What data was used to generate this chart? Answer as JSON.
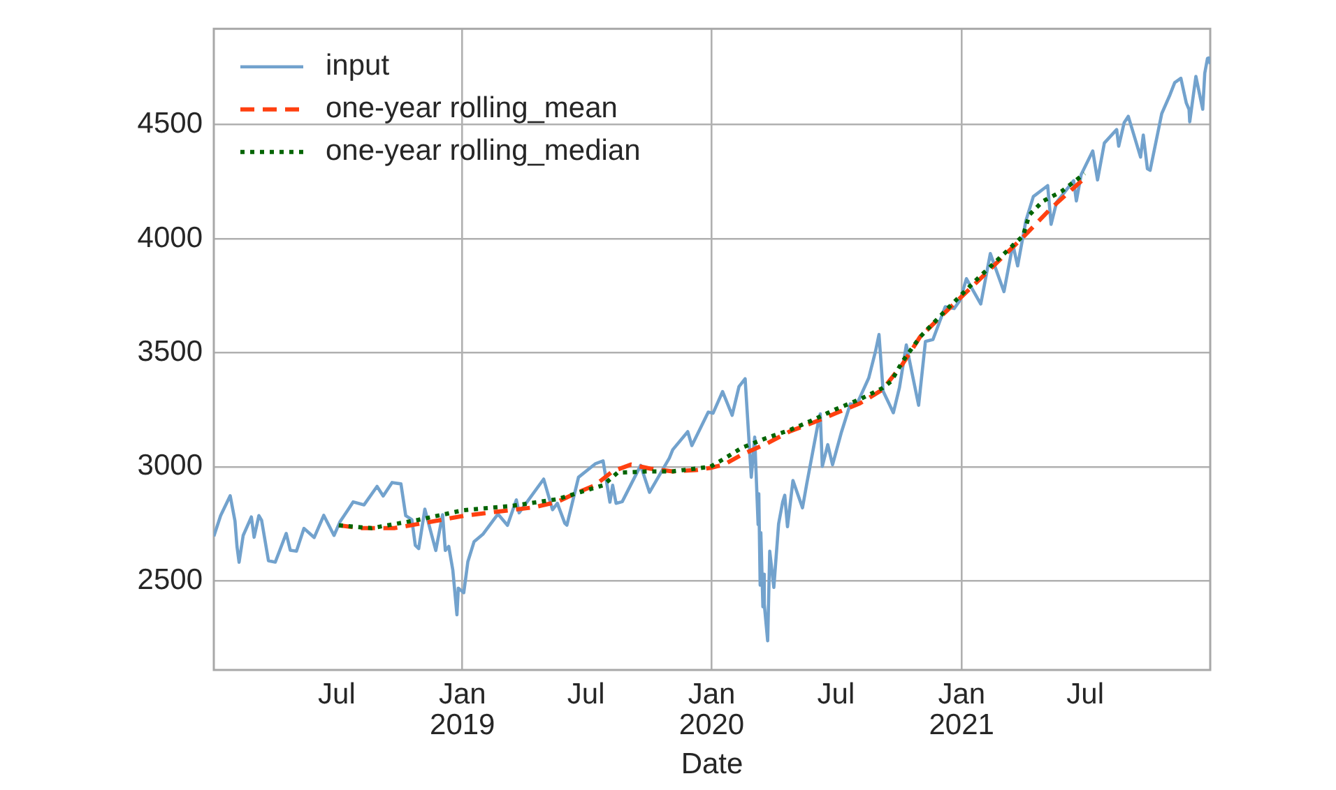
{
  "chart_data": {
    "type": "line",
    "xlabel": "Date",
    "xlim": [
      "2018-01-02",
      "2021-12-31"
    ],
    "ylim": [
      2109,
      4921
    ],
    "xticks": [
      {
        "value": "2018-07-01",
        "label": "Jul"
      },
      {
        "value": "2019-01-01",
        "label": "Jan\n2019"
      },
      {
        "value": "2019-07-01",
        "label": "Jul"
      },
      {
        "value": "2020-01-01",
        "label": "Jan\n2020"
      },
      {
        "value": "2020-07-01",
        "label": "Jul"
      },
      {
        "value": "2021-01-01",
        "label": "Jan\n2021"
      },
      {
        "value": "2021-07-01",
        "label": "Jul"
      }
    ],
    "yticks": [
      2500,
      3000,
      3500,
      4000,
      4500
    ],
    "grid": true,
    "legend": "top left",
    "series": [
      {
        "name": "input",
        "color": "#72a2cd",
        "line_style": "solid",
        "x": [
          "2018-01-02",
          "2018-01-12",
          "2018-01-26",
          "2018-02-02",
          "2018-02-05",
          "2018-02-08",
          "2018-02-14",
          "2018-02-26",
          "2018-03-02",
          "2018-03-09",
          "2018-03-13",
          "2018-03-23",
          "2018-04-02",
          "2018-04-18",
          "2018-04-24",
          "2018-05-03",
          "2018-05-14",
          "2018-05-29",
          "2018-06-12",
          "2018-06-27",
          "2018-07-06",
          "2018-07-17",
          "2018-07-25",
          "2018-08-10",
          "2018-08-29",
          "2018-09-07",
          "2018-09-20",
          "2018-10-03",
          "2018-10-10",
          "2018-10-19",
          "2018-10-24",
          "2018-10-29",
          "2018-11-07",
          "2018-11-23",
          "2018-12-03",
          "2018-12-07",
          "2018-12-12",
          "2018-12-18",
          "2018-12-24",
          "2018-12-26",
          "2019-01-03",
          "2019-01-09",
          "2019-01-18",
          "2019-01-31",
          "2019-02-22",
          "2019-03-08",
          "2019-03-21",
          "2019-03-25",
          "2019-04-30",
          "2019-05-13",
          "2019-05-20",
          "2019-05-31",
          "2019-06-03",
          "2019-06-20",
          "2019-07-15",
          "2019-07-26",
          "2019-08-05",
          "2019-08-09",
          "2019-08-14",
          "2019-08-23",
          "2019-09-19",
          "2019-10-02",
          "2019-10-31",
          "2019-11-05",
          "2019-11-27",
          "2019-12-03",
          "2019-12-27",
          "2020-01-03",
          "2020-01-17",
          "2020-01-31",
          "2020-02-10",
          "2020-02-19",
          "2020-02-28",
          "2020-03-04",
          "2020-03-09",
          "2020-03-10",
          "2020-03-12",
          "2020-03-13",
          "2020-03-16",
          "2020-03-17",
          "2020-03-18",
          "2020-03-23",
          "2020-03-26",
          "2020-04-01",
          "2020-04-08",
          "2020-04-14",
          "2020-04-17",
          "2020-04-21",
          "2020-04-29",
          "2020-05-13",
          "2020-05-19",
          "2020-06-05",
          "2020-06-08",
          "2020-06-11",
          "2020-06-19",
          "2020-06-26",
          "2020-07-09",
          "2020-07-22",
          "2020-07-31",
          "2020-08-18",
          "2020-08-28",
          "2020-09-02",
          "2020-09-08",
          "2020-09-23",
          "2020-10-02",
          "2020-10-12",
          "2020-10-30",
          "2020-11-09",
          "2020-11-20",
          "2020-12-08",
          "2020-12-21",
          "2020-12-30",
          "2021-01-08",
          "2021-01-29",
          "2021-02-12",
          "2021-03-04",
          "2021-03-17",
          "2021-03-24",
          "2021-04-05",
          "2021-04-16",
          "2021-05-07",
          "2021-05-12",
          "2021-05-20",
          "2021-06-14",
          "2021-06-18",
          "2021-06-25",
          "2021-07-12",
          "2021-07-19",
          "2021-07-29",
          "2021-08-16",
          "2021-08-19",
          "2021-08-27",
          "2021-09-02",
          "2021-09-20",
          "2021-09-24",
          "2021-09-30",
          "2021-10-04",
          "2021-10-21",
          "2021-11-02",
          "2021-11-09",
          "2021-11-18",
          "2021-11-26",
          "2021-11-30",
          "2021-12-01",
          "2021-12-10",
          "2021-12-20",
          "2021-12-23",
          "2021-12-27",
          "2021-12-29",
          "2021-12-31"
        ],
        "values": [
          2695,
          2786,
          2873,
          2762,
          2649,
          2581,
          2699,
          2780,
          2691,
          2786,
          2765,
          2588,
          2582,
          2708,
          2634,
          2630,
          2730,
          2690,
          2787,
          2699,
          2760,
          2809,
          2846,
          2833,
          2914,
          2872,
          2931,
          2925,
          2786,
          2768,
          2656,
          2641,
          2814,
          2633,
          2790,
          2633,
          2651,
          2546,
          2351,
          2468,
          2448,
          2584,
          2671,
          2704,
          2793,
          2743,
          2855,
          2798,
          2946,
          2812,
          2840,
          2752,
          2744,
          2954,
          3014,
          3026,
          2845,
          2919,
          2840,
          2847,
          3006,
          2888,
          3038,
          3075,
          3154,
          3093,
          3240,
          3235,
          3330,
          3226,
          3352,
          3386,
          2954,
          3130,
          2747,
          2882,
          2481,
          2711,
          2386,
          2529,
          2398,
          2237,
          2630,
          2471,
          2750,
          2846,
          2875,
          2737,
          2940,
          2820,
          2922,
          3194,
          3232,
          3002,
          3097,
          3009,
          3152,
          3276,
          3271,
          3390,
          3508,
          3580,
          3332,
          3237,
          3348,
          3534,
          3270,
          3550,
          3558,
          3702,
          3694,
          3732,
          3825,
          3714,
          3935,
          3768,
          3975,
          3881,
          4078,
          4185,
          4233,
          4063,
          4160,
          4255,
          4166,
          4281,
          4385,
          4258,
          4420,
          4479,
          4406,
          4509,
          4537,
          4358,
          4455,
          4307,
          4300,
          4549,
          4631,
          4685,
          4704,
          4595,
          4567,
          4513,
          4712,
          4568,
          4726,
          4791,
          4793,
          4766
        ]
      },
      {
        "name": "one-year rolling_mean",
        "color": "#ff4010",
        "line_style": "dashed",
        "x": [
          "2018-07-04",
          "2018-08-07",
          "2018-09-23",
          "2018-10-28",
          "2018-12-01",
          "2019-01-03",
          "2019-02-07",
          "2019-03-13",
          "2019-04-15",
          "2019-05-20",
          "2019-06-15",
          "2019-07-14",
          "2019-08-09",
          "2019-09-05",
          "2019-10-03",
          "2019-11-05",
          "2019-12-10",
          "2019-12-30",
          "2020-01-19",
          "2020-02-14",
          "2020-03-21",
          "2020-04-25",
          "2020-05-28",
          "2020-07-01",
          "2020-08-05",
          "2020-09-07",
          "2020-10-06",
          "2020-11-01",
          "2020-12-06",
          "2021-01-24",
          "2021-04-01",
          "2021-05-12",
          "2021-06-26"
        ],
        "values": [
          2743,
          2731,
          2731,
          2749,
          2767,
          2785,
          2798,
          2810,
          2822,
          2846,
          2883,
          2919,
          2980,
          3010,
          2992,
          2980,
          2986,
          2995,
          3010,
          3053,
          3101,
          3156,
          3193,
          3235,
          3278,
          3338,
          3448,
          3569,
          3672,
          3812,
          4007,
          4134,
          4255
        ]
      },
      {
        "name": "one-year rolling_median",
        "color": "#006400",
        "line_style": "dotted",
        "x": [
          "2018-07-04",
          "2018-08-21",
          "2018-10-28",
          "2019-01-03",
          "2019-03-13",
          "2019-05-20",
          "2019-06-23",
          "2019-07-26",
          "2019-08-16",
          "2019-10-03",
          "2019-11-05",
          "2019-12-30",
          "2020-01-19",
          "2020-02-14",
          "2020-03-21",
          "2020-04-25",
          "2020-05-28",
          "2020-07-01",
          "2020-08-05",
          "2020-09-07",
          "2020-09-20",
          "2020-10-06",
          "2020-11-01",
          "2020-12-06",
          "2021-01-24",
          "2021-04-01",
          "2021-04-10",
          "2021-04-30",
          "2021-05-27",
          "2021-06-30"
        ],
        "values": [
          2743,
          2731,
          2767,
          2810,
          2828,
          2858,
          2889,
          2919,
          2974,
          2980,
          2980,
          3000,
          3035,
          3083,
          3126,
          3162,
          3205,
          3253,
          3296,
          3345,
          3375,
          3460,
          3569,
          3678,
          3824,
          4013,
          4104,
          4165,
          4207,
          4286
        ]
      }
    ]
  }
}
